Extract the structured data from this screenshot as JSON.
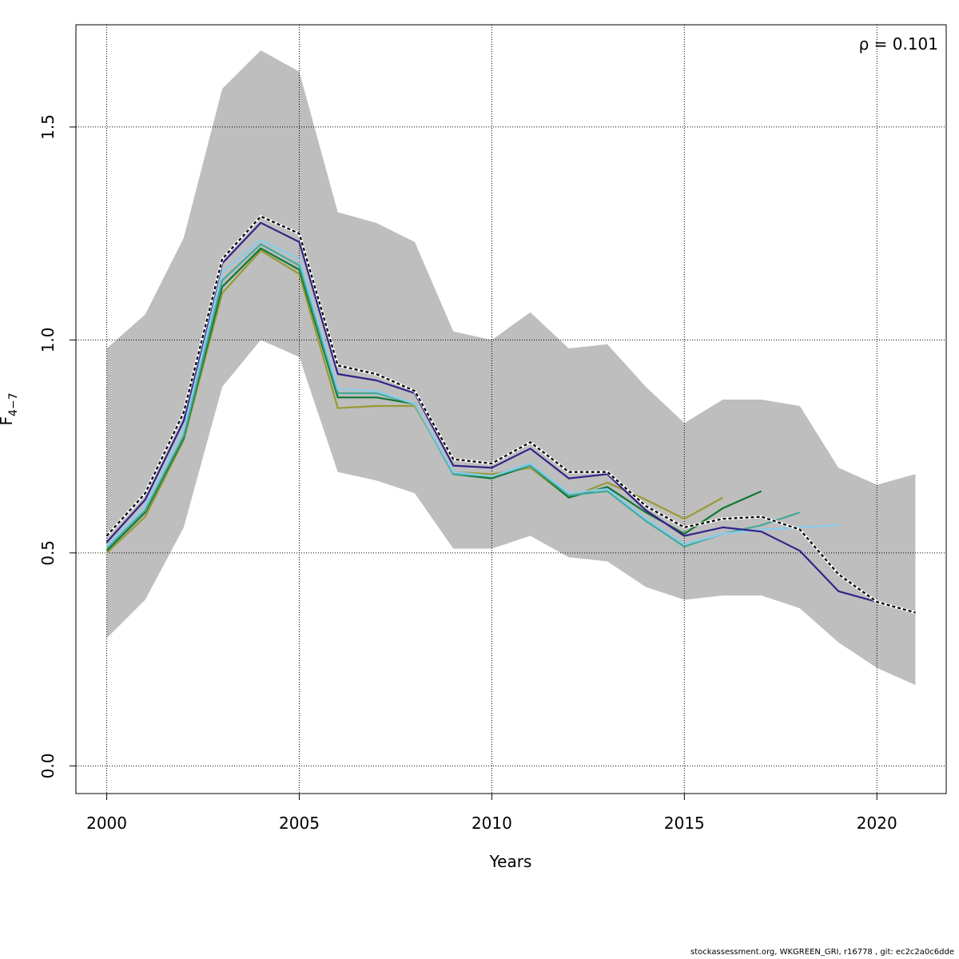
{
  "chart_data": {
    "type": "line",
    "xlabel": "Years",
    "ylabel_main": "F",
    "ylabel_sub": "4−7",
    "annotation": "ρ = 0.101",
    "xlim": [
      1999.2,
      2021.8
    ],
    "ylim": [
      -0.065,
      1.74
    ],
    "x_ticks": [
      2000,
      2005,
      2010,
      2015,
      2020
    ],
    "y_ticks": [
      0.0,
      0.5,
      1.0,
      1.5
    ],
    "x_tick_labels": [
      "2000",
      "2005",
      "2010",
      "2015",
      "2020"
    ],
    "y_tick_labels": [
      "0.0",
      "0.5",
      "1.0",
      "1.5"
    ],
    "grid": true,
    "confidence_band": {
      "color": "#bebebe",
      "x": [
        2000,
        2001,
        2002,
        2003,
        2004,
        2005,
        2006,
        2007,
        2008,
        2009,
        2010,
        2011,
        2012,
        2013,
        2014,
        2015,
        2016,
        2017,
        2018,
        2019,
        2020,
        2021
      ],
      "upper": [
        0.98,
        1.06,
        1.24,
        1.59,
        1.68,
        1.63,
        1.3,
        1.275,
        1.23,
        1.02,
        1.0,
        1.065,
        0.98,
        0.99,
        0.89,
        0.805,
        0.86,
        0.86,
        0.845,
        0.7,
        0.66,
        0.685
      ],
      "lower": [
        0.3,
        0.39,
        0.56,
        0.89,
        1.0,
        0.96,
        0.69,
        0.67,
        0.64,
        0.51,
        0.51,
        0.54,
        0.49,
        0.48,
        0.42,
        0.39,
        0.4,
        0.4,
        0.37,
        0.29,
        0.23,
        0.19
      ]
    },
    "series": [
      {
        "color": "#000000",
        "dashed": true,
        "x": [
          2000,
          2001,
          2002,
          2003,
          2004,
          2005,
          2006,
          2007,
          2008,
          2009,
          2010,
          2011,
          2012,
          2013,
          2014,
          2015,
          2016,
          2017,
          2018,
          2019,
          2020,
          2021
        ],
        "values": [
          0.54,
          0.64,
          0.83,
          1.19,
          1.29,
          1.25,
          0.94,
          0.92,
          0.88,
          0.72,
          0.71,
          0.76,
          0.69,
          0.69,
          0.61,
          0.56,
          0.58,
          0.585,
          0.555,
          0.45,
          0.385,
          0.36
        ]
      },
      {
        "color": "#332288",
        "x": [
          2000,
          2001,
          2002,
          2003,
          2004,
          2005,
          2006,
          2007,
          2008,
          2009,
          2010,
          2011,
          2012,
          2013,
          2014,
          2015,
          2016,
          2017,
          2018,
          2019,
          2020
        ],
        "values": [
          0.525,
          0.625,
          0.81,
          1.18,
          1.275,
          1.23,
          0.92,
          0.905,
          0.875,
          0.705,
          0.7,
          0.745,
          0.675,
          0.685,
          0.6,
          0.54,
          0.56,
          0.55,
          0.505,
          0.41,
          0.385
        ]
      },
      {
        "color": "#88ccee",
        "x": [
          2000,
          2001,
          2002,
          2003,
          2004,
          2005,
          2006,
          2007,
          2008,
          2009,
          2010,
          2011,
          2012,
          2013,
          2014,
          2015,
          2016,
          2017,
          2018,
          2019
        ],
        "values": [
          0.515,
          0.61,
          0.79,
          1.16,
          1.235,
          1.19,
          0.885,
          0.88,
          0.85,
          0.69,
          0.68,
          0.71,
          0.64,
          0.65,
          0.58,
          0.52,
          0.545,
          0.555,
          0.56,
          0.565
        ]
      },
      {
        "color": "#44aa99",
        "x": [
          2000,
          2001,
          2002,
          2003,
          2004,
          2005,
          2006,
          2007,
          2008,
          2009,
          2010,
          2011,
          2012,
          2013,
          2014,
          2015,
          2016,
          2017,
          2018
        ],
        "values": [
          0.51,
          0.6,
          0.775,
          1.14,
          1.225,
          1.175,
          0.875,
          0.875,
          0.85,
          0.685,
          0.68,
          0.705,
          0.635,
          0.645,
          0.575,
          0.515,
          0.545,
          0.565,
          0.595
        ]
      },
      {
        "color": "#117733",
        "x": [
          2000,
          2001,
          2002,
          2003,
          2004,
          2005,
          2006,
          2007,
          2008,
          2009,
          2010,
          2011,
          2012,
          2013,
          2014,
          2015,
          2016,
          2017
        ],
        "values": [
          0.505,
          0.595,
          0.77,
          1.125,
          1.215,
          1.165,
          0.865,
          0.865,
          0.85,
          0.685,
          0.675,
          0.705,
          0.63,
          0.655,
          0.595,
          0.545,
          0.605,
          0.645
        ]
      },
      {
        "color": "#999933",
        "x": [
          2000,
          2001,
          2002,
          2003,
          2004,
          2005,
          2006,
          2007,
          2008,
          2009,
          2010,
          2011,
          2012,
          2013,
          2014,
          2015,
          2016
        ],
        "values": [
          0.5,
          0.585,
          0.765,
          1.11,
          1.21,
          1.155,
          0.84,
          0.845,
          0.845,
          0.69,
          0.685,
          0.7,
          0.63,
          0.665,
          0.625,
          0.58,
          0.63
        ]
      }
    ]
  },
  "footer_text": "stockassessment.org, WKGREEN_GRI, r16778 , git: ec2c2a0c6dde"
}
